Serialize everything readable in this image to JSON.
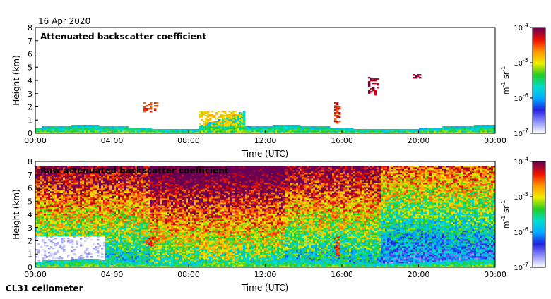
{
  "header": {
    "date": "16 Apr 2020"
  },
  "footer": {
    "instrument": "CL31 ceilometer"
  },
  "chart_data": [
    {
      "type": "heatmap",
      "title": "Attenuated backscatter coefficient",
      "xlabel": "Time (UTC)",
      "ylabel": "Height (km)",
      "xlim": [
        0,
        24
      ],
      "ylim": [
        0,
        8
      ],
      "xticks": [
        0,
        4,
        8,
        12,
        16,
        20,
        24
      ],
      "xtick_labels": [
        "00:00",
        "04:00",
        "08:00",
        "12:00",
        "16:00",
        "20:00",
        "00:00"
      ],
      "yticks": [
        0,
        1,
        2,
        3,
        4,
        5,
        6,
        7,
        8
      ],
      "ytick_labels": [
        "0",
        "1",
        "2",
        "3",
        "4",
        "5",
        "6",
        "7",
        "8"
      ],
      "colorbar": {
        "scale": "log",
        "range": [
          1e-07,
          0.0001
        ],
        "tick_labels": [
          "10-7",
          "10-6",
          "10-5",
          "10-4"
        ],
        "label": "m-1 sr-1"
      },
      "features": [
        {
          "name": "boundary layer",
          "time_range": [
            0,
            24
          ],
          "height_km": [
            0.0,
            0.6
          ],
          "log_intensity": -5.6
        },
        {
          "name": "growing boundary layer",
          "time_range": [
            8.5,
            10.8
          ],
          "height_km": [
            0.5,
            1.7
          ],
          "log_intensity": -4.9
        },
        {
          "name": "cloud",
          "time_range": [
            5.6,
            6.4
          ],
          "height_km": [
            1.6,
            2.3
          ],
          "log_intensity": -4.4
        },
        {
          "name": "cloud",
          "time_range": [
            15.6,
            15.9
          ],
          "height_km": [
            0.8,
            2.4
          ],
          "log_intensity": -4.4
        },
        {
          "name": "cloud",
          "time_range": [
            17.4,
            17.9
          ],
          "height_km": [
            2.9,
            4.3
          ],
          "log_intensity": -4.2
        },
        {
          "name": "cloud",
          "time_range": [
            19.7,
            20.1
          ],
          "height_km": [
            4.2,
            4.5
          ],
          "log_intensity": -4.2
        }
      ]
    },
    {
      "type": "heatmap",
      "title": "Raw attenuated backscatter coefficient",
      "xlabel": "Time (UTC)",
      "ylabel": "Height (km)",
      "xlim": [
        0,
        24
      ],
      "ylim": [
        0,
        8
      ],
      "xticks": [
        0,
        4,
        8,
        12,
        16,
        20,
        24
      ],
      "xtick_labels": [
        "00:00",
        "04:00",
        "08:00",
        "12:00",
        "16:00",
        "20:00",
        "00:00"
      ],
      "yticks": [
        0,
        1,
        2,
        3,
        4,
        5,
        6,
        7,
        8
      ],
      "ytick_labels": [
        "0",
        "1",
        "2",
        "3",
        "4",
        "5",
        "6",
        "7",
        "8"
      ],
      "colorbar": {
        "scale": "log",
        "range": [
          1e-07,
          0.0001
        ],
        "tick_labels": [
          "10-7",
          "10-6",
          "10-5",
          "10-4"
        ],
        "label": "m-1 sr-1"
      },
      "features": [
        {
          "name": "noisy background",
          "time_range": [
            0,
            24
          ],
          "height_km": [
            0,
            8
          ],
          "log_intensity": -5.5
        },
        {
          "name": "clear region",
          "time_range": [
            0,
            3.6
          ],
          "height_km": [
            0.3,
            2.3
          ],
          "log_intensity": -7.0
        },
        {
          "name": "boundary layer",
          "time_range": [
            0,
            24
          ],
          "height_km": [
            0.0,
            0.6
          ],
          "log_intensity": -5.6
        },
        {
          "name": "growing boundary layer",
          "time_range": [
            8.5,
            10.8
          ],
          "height_km": [
            0.5,
            1.7
          ],
          "log_intensity": -4.9
        },
        {
          "name": "cloud",
          "time_range": [
            5.6,
            6.4
          ],
          "height_km": [
            1.6,
            2.3
          ],
          "log_intensity": -4.4
        },
        {
          "name": "cloud",
          "time_range": [
            15.6,
            15.9
          ],
          "height_km": [
            0.8,
            2.4
          ],
          "log_intensity": -4.4
        }
      ]
    }
  ]
}
